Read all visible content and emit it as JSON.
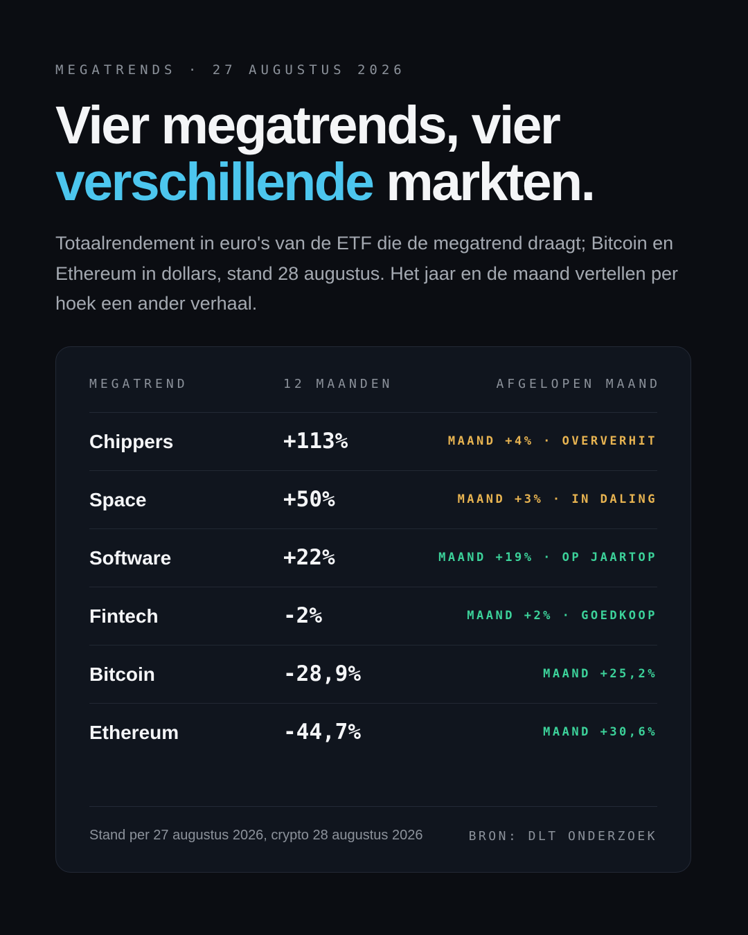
{
  "eyebrow": "MEGATRENDS · 27 AUGUSTUS 2026",
  "headline": {
    "line1": "Vier megatrends, vier",
    "accent": "verschillende",
    "line2_rest": " markten."
  },
  "lede": "Totaalrendement in euro's van de ETF die de megatrend draagt; Bitcoin en Ethereum in dollars, stand 28 augustus. Het jaar en de maand vertellen per hoek een ander verhaal.",
  "colors": {
    "background": "#0b0d12",
    "card": "#10151e",
    "accent": "#4cc6ee",
    "amber": "#e8b451",
    "green": "#3cd29a",
    "muted": "#8c929b"
  },
  "table": {
    "headers": {
      "trend": "MEGATREND",
      "year": "12 MAANDEN",
      "month": "AFGELOPEN MAAND"
    },
    "rows": [
      {
        "name": "Chippers",
        "year": "+113%",
        "month": "MAAND +4% · OVERVERHIT",
        "tone": "amber"
      },
      {
        "name": "Space",
        "year": "+50%",
        "month": "MAAND +3% · IN DALING",
        "tone": "amber"
      },
      {
        "name": "Software",
        "year": "+22%",
        "month": "MAAND +19% · OP JAARTOP",
        "tone": "green"
      },
      {
        "name": "Fintech",
        "year": "-2%",
        "month": "MAAND +2% · GOEDKOOP",
        "tone": "green"
      },
      {
        "name": "Bitcoin",
        "year": "-28,9%",
        "month": "MAAND +25,2%",
        "tone": "green"
      },
      {
        "name": "Ethereum",
        "year": "-44,7%",
        "month": "MAAND +30,6%",
        "tone": "green"
      }
    ]
  },
  "footer": {
    "note": "Stand per 27 augustus 2026, crypto 28 augustus 2026",
    "source": "BRON: DLT ONDERZOEK"
  }
}
